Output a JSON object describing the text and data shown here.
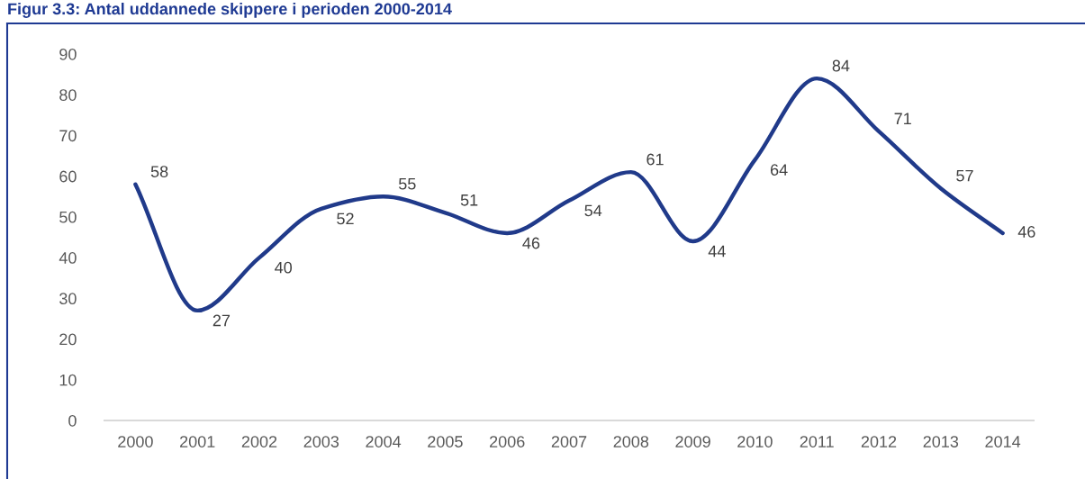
{
  "chart_data": {
    "type": "line",
    "title": "Figur 3.3: Antal uddannede skippere i perioden 2000-2014",
    "categories": [
      "2000",
      "2001",
      "2002",
      "2003",
      "2004",
      "2005",
      "2006",
      "2007",
      "2008",
      "2009",
      "2010",
      "2011",
      "2012",
      "2013",
      "2014"
    ],
    "series": [
      {
        "color": "#203a8a",
        "values": [
          58,
          27,
          40,
          52,
          55,
          51,
          46,
          54,
          61,
          44,
          64,
          84,
          71,
          57,
          46
        ]
      }
    ],
    "ylim": [
      0,
      90
    ],
    "yticks": [
      0,
      10,
      20,
      30,
      40,
      50,
      60,
      70,
      80,
      90
    ],
    "data_labels": true,
    "line_style": "solid"
  }
}
